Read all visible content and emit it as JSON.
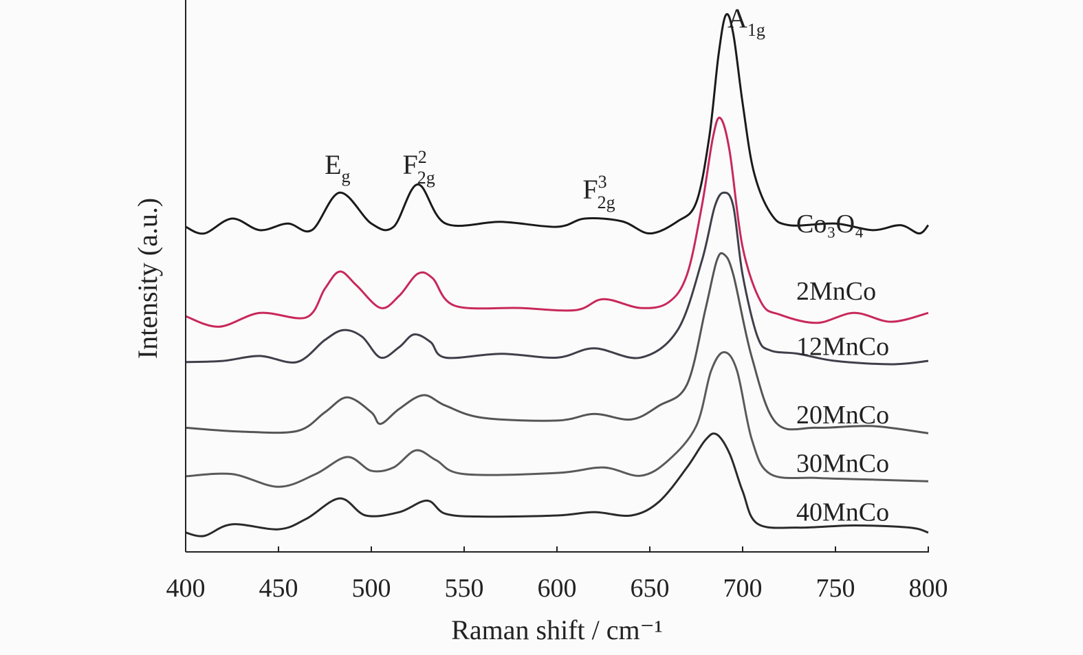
{
  "chart_data": {
    "type": "line",
    "title": "",
    "xlabel": "Raman shift / cm⁻¹",
    "ylabel": "Intensity (a.u.)",
    "xlim": [
      400,
      800
    ],
    "ylim": [
      0,
      100
    ],
    "xticks": [
      400,
      450,
      500,
      550,
      600,
      650,
      700,
      750,
      800
    ],
    "grid": false,
    "legend": "inline labels at right of each curve",
    "series": [
      {
        "name": "Co₃O₄",
        "color": "#1a1a1a",
        "label_y": 59.5,
        "x": [
          400,
          410,
          425,
          440,
          455,
          468,
          483,
          500,
          512,
          525,
          540,
          570,
          600,
          615,
          635,
          650,
          665,
          675,
          682,
          687,
          691,
          695,
          700,
          706,
          715,
          725,
          750,
          770,
          785,
          795,
          800
        ],
        "y": [
          58.9,
          57.7,
          60.4,
          58.3,
          59.5,
          58.3,
          65.1,
          59.5,
          58.9,
          66.6,
          59.5,
          59.8,
          58.9,
          60.4,
          59.9,
          57.7,
          59.9,
          63.3,
          75.1,
          90.0,
          97.3,
          93.8,
          81.3,
          68.9,
          61.4,
          59.2,
          59.5,
          58.3,
          59.2,
          57.7,
          59.2
        ]
      },
      {
        "name": "2MnCo",
        "color": "#c8285a",
        "label_y": 47.3,
        "x": [
          400,
          418,
          440,
          465,
          475,
          483,
          492,
          505,
          515,
          525,
          533,
          545,
          580,
          610,
          625,
          645,
          660,
          670,
          678,
          684,
          688,
          693,
          700,
          710,
          720,
          740,
          760,
          780,
          800
        ],
        "y": [
          42.7,
          40.8,
          43.3,
          42.5,
          47.7,
          50.8,
          48.3,
          44.2,
          46.4,
          50.4,
          49.6,
          44.6,
          44.2,
          43.8,
          45.8,
          44.2,
          45.2,
          50.2,
          62.6,
          75.1,
          78.6,
          72.6,
          55.2,
          45.2,
          43.0,
          41.5,
          43.3,
          41.7,
          43.3
        ]
      },
      {
        "name": "12MnCo",
        "color": "#3f3f4a",
        "label_y": 37.3,
        "x": [
          400,
          420,
          440,
          460,
          475,
          485,
          495,
          505,
          515,
          523,
          532,
          540,
          570,
          600,
          620,
          645,
          665,
          678,
          685,
          690,
          695,
          700,
          708,
          715,
          730,
          750,
          780,
          800
        ],
        "y": [
          34.4,
          34.6,
          35.5,
          34.4,
          38.4,
          40.2,
          39.0,
          35.2,
          37.1,
          39.4,
          38.0,
          35.2,
          35.9,
          35.2,
          36.9,
          35.2,
          40.2,
          52.7,
          62.6,
          65.1,
          62.6,
          50.2,
          39.0,
          36.5,
          35.9,
          34.6,
          34.0,
          34.6
        ]
      },
      {
        "name": "20MnCo",
        "color": "#555555",
        "label_y": 24.9,
        "x": [
          400,
          430,
          460,
          475,
          487,
          500,
          505,
          515,
          528,
          540,
          560,
          600,
          620,
          640,
          655,
          670,
          680,
          686,
          690,
          695,
          705,
          718,
          740,
          770,
          800
        ],
        "y": [
          22.5,
          21.8,
          21.9,
          25.3,
          28.0,
          25.3,
          23.2,
          25.9,
          28.4,
          26.5,
          24.3,
          23.8,
          25.0,
          24.0,
          26.5,
          30.3,
          44.0,
          52.7,
          53.9,
          50.2,
          35.2,
          23.4,
          22.5,
          22.8,
          21.5
        ]
      },
      {
        "name": "30MnCo",
        "color": "#5a5a5a",
        "label_y": 16.1,
        "x": [
          400,
          425,
          450,
          470,
          487,
          500,
          512,
          524,
          535,
          550,
          600,
          625,
          645,
          660,
          675,
          683,
          690,
          697,
          705,
          715,
          740,
          770,
          800
        ],
        "y": [
          13.7,
          14.1,
          11.8,
          14.1,
          17.2,
          14.7,
          15.3,
          18.4,
          16.6,
          14.1,
          14.3,
          15.3,
          13.8,
          16.6,
          22.8,
          32.8,
          36.2,
          32.8,
          20.3,
          14.1,
          13.4,
          13.1,
          12.8
        ]
      },
      {
        "name": "40MnCo",
        "color": "#2a2a2a",
        "label_y": 7.3,
        "x": [
          400,
          410,
          425,
          450,
          465,
          483,
          497,
          515,
          530,
          540,
          560,
          600,
          620,
          640,
          655,
          670,
          680,
          686,
          693,
          700,
          708,
          730,
          760,
          790,
          800
        ],
        "y": [
          3.5,
          2.9,
          5.0,
          4.1,
          6.0,
          9.7,
          6.6,
          7.2,
          9.3,
          6.9,
          6.4,
          6.6,
          7.2,
          6.6,
          9.1,
          15.3,
          20.3,
          21.3,
          17.8,
          11.0,
          5.1,
          4.4,
          4.8,
          4.4,
          3.5
        ]
      }
    ],
    "annotations": [
      {
        "base": "E",
        "sub": "g",
        "sup": "",
        "x": 483,
        "y": 68.5
      },
      {
        "base": "F",
        "sub": "2g",
        "sup": "2",
        "x": 525,
        "y": 68.5
      },
      {
        "base": "F",
        "sub": "2g",
        "sup": "3",
        "x": 622,
        "y": 64
      },
      {
        "base": "A",
        "sub": "1g",
        "sup": "",
        "x": 700,
        "y": 95
      }
    ]
  }
}
